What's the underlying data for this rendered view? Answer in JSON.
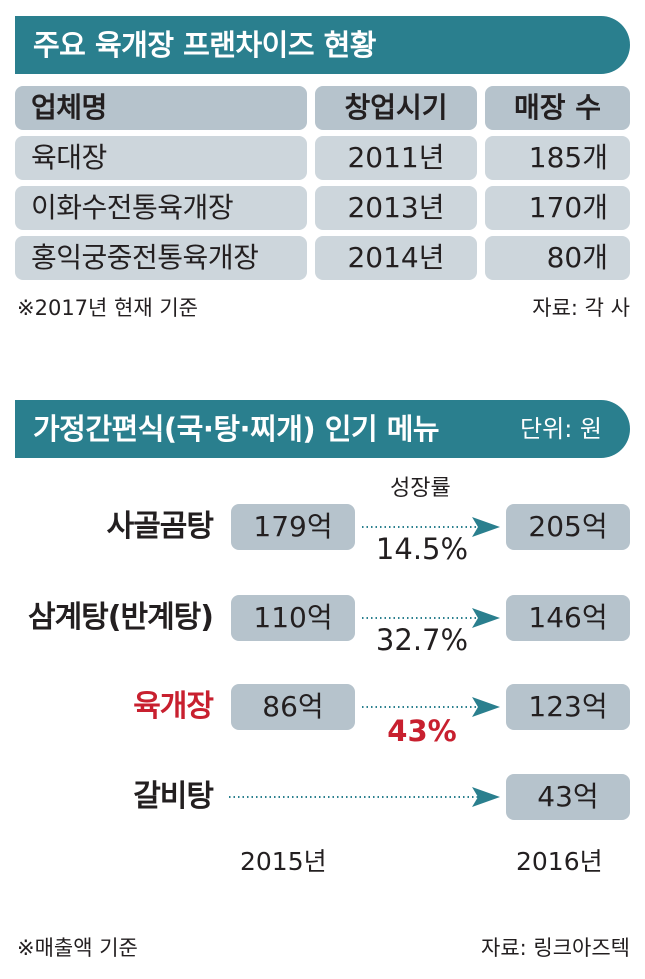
{
  "franchise": {
    "title": "주요 육개장 프랜차이즈 현황",
    "headers": [
      "업체명",
      "창업시기",
      "매장 수"
    ],
    "rows": [
      [
        "육대장",
        "2011년",
        "185개"
      ],
      [
        "이화수전통육개장",
        "2013년",
        "170개"
      ],
      [
        "홍익궁중전통육개장",
        "2014년",
        "80개"
      ]
    ],
    "note": "※2017년 현재 기준",
    "source": "자료: 각 사"
  },
  "chart_data": {
    "type": "table",
    "title": "가정간편식(국·탕·찌개) 인기 메뉴",
    "unit": "단위: 원",
    "growth_header": "성장률",
    "years": [
      "2015년",
      "2016년"
    ],
    "rows": [
      {
        "menu": "사골곰탕",
        "v2015": "179억",
        "v2016": "205억",
        "growth": "14.5%",
        "highlight": false
      },
      {
        "menu": "삼계탕(반계탕)",
        "v2015": "110억",
        "v2016": "146억",
        "growth": "32.7%",
        "highlight": false
      },
      {
        "menu": "육개장",
        "v2015": "86억",
        "v2016": "123억",
        "growth": "43%",
        "highlight": true
      },
      {
        "menu": "갈비탕",
        "v2015": null,
        "v2016": "43억",
        "growth": null,
        "highlight": false
      }
    ],
    "note": "※매출액 기준",
    "source": "자료: 링크아즈텍"
  },
  "colors": {
    "banner": "#2a7f8e",
    "header_cell": "#b6c3cc",
    "body_cell": "#cdd6dc",
    "highlight": "#c8202f",
    "arrow": "#2a7f8e"
  }
}
